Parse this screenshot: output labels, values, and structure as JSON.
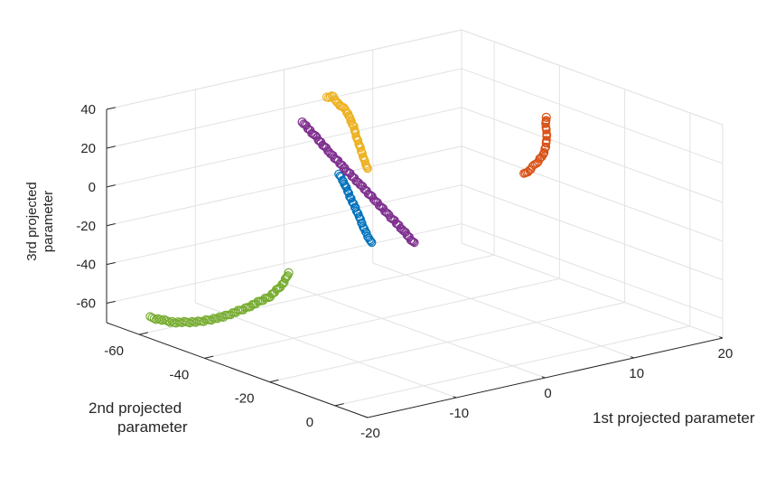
{
  "chart_data": {
    "type": "scatter3d",
    "xlabel": "1st projected parameter",
    "ylabel_lines": [
      "2nd projected",
      "parameter"
    ],
    "zlabel_lines": [
      "3rd projected",
      "parameter"
    ],
    "xlim": [
      -20,
      20
    ],
    "ylim": [
      -70,
      10
    ],
    "zlim": [
      -70,
      40
    ],
    "x_ticks": [
      -20,
      -10,
      0,
      10,
      20
    ],
    "y_ticks": [
      0,
      -20,
      -40,
      -60
    ],
    "z_ticks": [
      40,
      20,
      0,
      -20,
      -40,
      -60
    ],
    "x_tick_labels": [
      "-20",
      "-10",
      "0",
      "10",
      "20"
    ],
    "y_tick_labels": [
      "0",
      "-20",
      "-40",
      "-60"
    ],
    "z_tick_labels": [
      "40",
      "20",
      "0",
      "-20",
      "-40",
      "-60"
    ],
    "grid": true,
    "series": [
      {
        "color": "#EDB120",
        "points": [
          [
            -18.9,
            7.0,
            55
          ],
          [
            -18.0,
            3.3,
            58
          ],
          [
            -17.0,
            -0.5,
            60
          ],
          [
            -15.9,
            -4.7,
            62
          ],
          [
            -14.6,
            -8.9,
            63
          ],
          [
            -13.6,
            -12.6,
            63
          ],
          [
            -12.5,
            -16.4,
            63
          ],
          [
            -11.5,
            -20.4,
            62
          ],
          [
            -10.4,
            -24.2,
            60
          ],
          [
            -9.4,
            -28.2,
            58
          ],
          [
            -8.0,
            -32.7,
            56
          ],
          [
            -7.3,
            -35.5,
            55
          ],
          [
            -7.3,
            -37.0,
            53.5
          ]
        ]
      },
      {
        "color": "#0072BD",
        "points": [
          [
            -18.1,
            6.1,
            15.5
          ],
          [
            -16.7,
            1.3,
            14.2
          ],
          [
            -14.9,
            -4.8,
            12.5
          ],
          [
            -13.1,
            -10.7,
            11
          ],
          [
            -11.2,
            -16.8,
            9.5
          ],
          [
            -9.4,
            -22.8,
            8
          ],
          [
            -7.5,
            -29.3,
            6.5
          ],
          [
            -5.3,
            -36.4,
            4.5
          ],
          [
            -3.5,
            -42.3,
            3
          ],
          [
            -1.9,
            -48.0,
            1.5
          ]
        ]
      },
      {
        "color": "#7E2F8E",
        "points": [
          [
            -9.4,
            -4.5,
            0
          ],
          [
            -9.3,
            -8.6,
            5
          ],
          [
            -9.3,
            -13.0,
            10
          ],
          [
            -9.2,
            -17.6,
            15
          ],
          [
            -9.1,
            -22.4,
            20
          ],
          [
            -9.0,
            -27.3,
            25
          ],
          [
            -8.9,
            -32.0,
            30
          ],
          [
            -8.8,
            -36.4,
            35
          ],
          [
            -8.8,
            -40.5,
            40
          ]
        ]
      },
      {
        "color": "#D95319",
        "points": [
          [
            4.8,
            -9.6,
            18
          ],
          [
            6.8,
            -13.3,
            16
          ],
          [
            8.7,
            -17.1,
            14
          ],
          [
            10.6,
            -20.9,
            12
          ],
          [
            12.5,
            -24.6,
            11
          ],
          [
            14.2,
            -28.4,
            11.5
          ],
          [
            15.6,
            -31.9,
            13.5
          ],
          [
            16.6,
            -35.0,
            16
          ],
          [
            17.3,
            -36.7,
            18
          ]
        ]
      },
      {
        "color": "#77AC30",
        "points": [
          [
            -19.7,
            -57.5,
            -60
          ],
          [
            -17.1,
            -57.2,
            -65
          ],
          [
            -14.1,
            -57.5,
            -68
          ],
          [
            -11.1,
            -58.4,
            -69
          ],
          [
            -7.9,
            -59.9,
            -68.5
          ],
          [
            -4.6,
            -61.7,
            -67
          ],
          [
            -2.4,
            -63.7,
            -64
          ],
          [
            -1.1,
            -65.6,
            -61
          ]
        ]
      }
    ]
  }
}
